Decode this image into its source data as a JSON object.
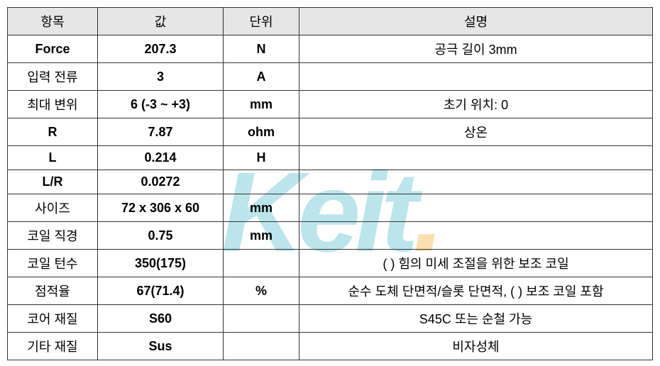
{
  "headers": {
    "item": "항목",
    "value": "값",
    "unit": "단위",
    "desc": "설명"
  },
  "rows": [
    {
      "item": "Force",
      "value": "207.3",
      "unit": "N",
      "desc": "공극 길이 3mm",
      "bold": true
    },
    {
      "item": "입력 전류",
      "value": "3",
      "unit": "A",
      "desc": ""
    },
    {
      "item": "최대 변위",
      "value": "6 (-3 ~ +3)",
      "unit": "mm",
      "desc": "초기 위치: 0"
    },
    {
      "item": "R",
      "value": "7.87",
      "unit": "ohm",
      "desc": "상온"
    },
    {
      "item": "L",
      "value": "0.214",
      "unit": "H",
      "desc": ""
    },
    {
      "item": "L/R",
      "value": "0.0272",
      "unit": "",
      "desc": ""
    },
    {
      "item": "사이즈",
      "value": "72 x 306 x 60",
      "unit": "mm",
      "desc": ""
    },
    {
      "item": "코일 직경",
      "value": "0.75",
      "unit": "mm",
      "desc": ""
    },
    {
      "item": "코일 턴수",
      "value": "350(175)",
      "unit": "",
      "desc": "( ) 힘의 미세 조절을 위한 보조 코일"
    },
    {
      "item": "점적율",
      "value": "67(71.4)",
      "unit": "%",
      "desc": "순수 도체 단면적/슬롯 단면적, ( ) 보조 코일 포함"
    },
    {
      "item": "코어 재질",
      "value": "S60",
      "unit": "",
      "desc": "S45C 또는 순철 가능"
    },
    {
      "item": "기타 재질",
      "value": "Sus",
      "unit": "",
      "desc": "비자성체"
    }
  ],
  "style": {
    "header_bg": "#e6e6e6",
    "border_color": "#333333",
    "font_size_pt": 14,
    "watermark_text": "Keit",
    "watermark_color": "#3fb4c8",
    "watermark_dot_color": "#f5a623"
  }
}
